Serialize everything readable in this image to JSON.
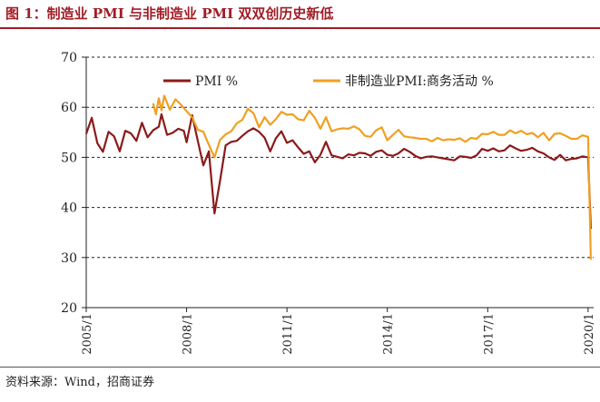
{
  "title": "图 1：制造业 PMI 与非制造业 PMI 双双创历史新低",
  "source": "资料来源：Wind，招商证券",
  "chart_data": {
    "type": "line",
    "ylim": [
      20,
      70
    ],
    "yticks": [
      20,
      30,
      40,
      50,
      60,
      70
    ],
    "xlim": [
      "2005/1",
      "2020/3"
    ],
    "xticks": [
      "2005/1",
      "2008/1",
      "2011/1",
      "2014/1",
      "2017/1",
      "2020/1"
    ],
    "grid": "horizontal dashed",
    "legend_position": "top",
    "series": [
      {
        "name": "PMI %",
        "color": "#8b1a1a",
        "points": [
          [
            "2005/1",
            54.7
          ],
          [
            "2005/3",
            57.9
          ],
          [
            "2005/5",
            52.8
          ],
          [
            "2005/7",
            51.1
          ],
          [
            "2005/9",
            55.1
          ],
          [
            "2005/11",
            54.2
          ],
          [
            "2006/1",
            51.2
          ],
          [
            "2006/3",
            55.3
          ],
          [
            "2006/5",
            54.8
          ],
          [
            "2006/7",
            53.3
          ],
          [
            "2006/9",
            56.9
          ],
          [
            "2006/11",
            54.0
          ],
          [
            "2007/1",
            55.4
          ],
          [
            "2007/3",
            56.1
          ],
          [
            "2007/4",
            58.6
          ],
          [
            "2007/6",
            54.5
          ],
          [
            "2007/8",
            54.9
          ],
          [
            "2007/10",
            55.7
          ],
          [
            "2007/12",
            55.3
          ],
          [
            "2008/1",
            53.0
          ],
          [
            "2008/3",
            58.4
          ],
          [
            "2008/5",
            53.3
          ],
          [
            "2008/7",
            48.4
          ],
          [
            "2008/9",
            51.2
          ],
          [
            "2008/11",
            38.8
          ],
          [
            "2009/1",
            45.3
          ],
          [
            "2009/3",
            52.4
          ],
          [
            "2009/5",
            53.1
          ],
          [
            "2009/7",
            53.3
          ],
          [
            "2009/9",
            54.3
          ],
          [
            "2009/11",
            55.2
          ],
          [
            "2010/1",
            55.8
          ],
          [
            "2010/3",
            55.1
          ],
          [
            "2010/5",
            53.9
          ],
          [
            "2010/7",
            51.2
          ],
          [
            "2010/9",
            53.8
          ],
          [
            "2010/11",
            55.2
          ],
          [
            "2011/1",
            52.9
          ],
          [
            "2011/3",
            53.4
          ],
          [
            "2011/5",
            52.0
          ],
          [
            "2011/7",
            50.7
          ],
          [
            "2011/9",
            51.2
          ],
          [
            "2011/11",
            49.0
          ],
          [
            "2012/1",
            50.5
          ],
          [
            "2012/3",
            53.1
          ],
          [
            "2012/5",
            50.4
          ],
          [
            "2012/7",
            50.1
          ],
          [
            "2012/9",
            49.8
          ],
          [
            "2012/11",
            50.6
          ],
          [
            "2013/1",
            50.4
          ],
          [
            "2013/3",
            50.9
          ],
          [
            "2013/5",
            50.8
          ],
          [
            "2013/7",
            50.3
          ],
          [
            "2013/9",
            51.1
          ],
          [
            "2013/11",
            51.4
          ],
          [
            "2014/1",
            50.5
          ],
          [
            "2014/3",
            50.3
          ],
          [
            "2014/5",
            50.8
          ],
          [
            "2014/7",
            51.7
          ],
          [
            "2014/9",
            51.1
          ],
          [
            "2014/11",
            50.3
          ],
          [
            "2015/1",
            49.8
          ],
          [
            "2015/3",
            50.1
          ],
          [
            "2015/5",
            50.2
          ],
          [
            "2015/7",
            50.0
          ],
          [
            "2015/9",
            49.8
          ],
          [
            "2015/11",
            49.6
          ],
          [
            "2016/1",
            49.4
          ],
          [
            "2016/3",
            50.2
          ],
          [
            "2016/5",
            50.1
          ],
          [
            "2016/7",
            49.9
          ],
          [
            "2016/9",
            50.4
          ],
          [
            "2016/11",
            51.7
          ],
          [
            "2017/1",
            51.3
          ],
          [
            "2017/3",
            51.8
          ],
          [
            "2017/5",
            51.2
          ],
          [
            "2017/7",
            51.4
          ],
          [
            "2017/9",
            52.4
          ],
          [
            "2017/11",
            51.8
          ],
          [
            "2018/1",
            51.3
          ],
          [
            "2018/3",
            51.5
          ],
          [
            "2018/5",
            51.9
          ],
          [
            "2018/7",
            51.2
          ],
          [
            "2018/9",
            50.8
          ],
          [
            "2018/11",
            50.0
          ],
          [
            "2019/1",
            49.5
          ],
          [
            "2019/3",
            50.5
          ],
          [
            "2019/5",
            49.4
          ],
          [
            "2019/7",
            49.7
          ],
          [
            "2019/9",
            49.8
          ],
          [
            "2019/11",
            50.2
          ],
          [
            "2020/1",
            50.0
          ],
          [
            "2020/2",
            35.7
          ]
        ]
      },
      {
        "name": "非制造业PMI:商务活动 %",
        "color": "#f0a020",
        "points": [
          [
            "2007/1",
            60.8
          ],
          [
            "2007/2",
            58.6
          ],
          [
            "2007/3",
            61.8
          ],
          [
            "2007/4",
            59.4
          ],
          [
            "2007/5",
            62.3
          ],
          [
            "2007/7",
            59.5
          ],
          [
            "2007/9",
            61.6
          ],
          [
            "2007/11",
            60.5
          ],
          [
            "2008/1",
            59.2
          ],
          [
            "2008/3",
            58.0
          ],
          [
            "2008/5",
            55.5
          ],
          [
            "2008/7",
            55.1
          ],
          [
            "2008/9",
            52.5
          ],
          [
            "2008/11",
            50.0
          ],
          [
            "2009/1",
            53.5
          ],
          [
            "2009/3",
            54.6
          ],
          [
            "2009/5",
            55.2
          ],
          [
            "2009/7",
            56.8
          ],
          [
            "2009/9",
            57.5
          ],
          [
            "2009/11",
            59.7
          ],
          [
            "2010/1",
            58.8
          ],
          [
            "2010/3",
            56.0
          ],
          [
            "2010/5",
            58.0
          ],
          [
            "2010/7",
            56.5
          ],
          [
            "2010/9",
            57.6
          ],
          [
            "2010/11",
            59.1
          ],
          [
            "2011/1",
            58.5
          ],
          [
            "2011/3",
            58.6
          ],
          [
            "2011/5",
            57.6
          ],
          [
            "2011/7",
            57.4
          ],
          [
            "2011/9",
            59.3
          ],
          [
            "2011/11",
            57.9
          ],
          [
            "2012/1",
            55.7
          ],
          [
            "2012/3",
            58.0
          ],
          [
            "2012/5",
            55.2
          ],
          [
            "2012/7",
            55.6
          ],
          [
            "2012/9",
            55.8
          ],
          [
            "2012/11",
            55.7
          ],
          [
            "2013/1",
            56.2
          ],
          [
            "2013/3",
            55.6
          ],
          [
            "2013/5",
            54.3
          ],
          [
            "2013/7",
            54.1
          ],
          [
            "2013/9",
            55.4
          ],
          [
            "2013/11",
            56.0
          ],
          [
            "2014/1",
            53.4
          ],
          [
            "2014/3",
            54.5
          ],
          [
            "2014/5",
            55.5
          ],
          [
            "2014/7",
            54.2
          ],
          [
            "2014/9",
            54.0
          ],
          [
            "2014/11",
            53.9
          ],
          [
            "2015/1",
            53.7
          ],
          [
            "2015/3",
            53.7
          ],
          [
            "2015/5",
            53.2
          ],
          [
            "2015/7",
            53.9
          ],
          [
            "2015/9",
            53.4
          ],
          [
            "2015/11",
            53.6
          ],
          [
            "2016/1",
            53.5
          ],
          [
            "2016/3",
            53.8
          ],
          [
            "2016/5",
            53.1
          ],
          [
            "2016/7",
            53.9
          ],
          [
            "2016/9",
            53.7
          ],
          [
            "2016/11",
            54.7
          ],
          [
            "2017/1",
            54.6
          ],
          [
            "2017/3",
            55.1
          ],
          [
            "2017/5",
            54.5
          ],
          [
            "2017/7",
            54.5
          ],
          [
            "2017/9",
            55.4
          ],
          [
            "2017/11",
            54.8
          ],
          [
            "2018/1",
            55.3
          ],
          [
            "2018/3",
            54.6
          ],
          [
            "2018/5",
            54.9
          ],
          [
            "2018/7",
            54.0
          ],
          [
            "2018/9",
            54.9
          ],
          [
            "2018/11",
            53.4
          ],
          [
            "2019/1",
            54.7
          ],
          [
            "2019/3",
            54.8
          ],
          [
            "2019/5",
            54.3
          ],
          [
            "2019/7",
            53.7
          ],
          [
            "2019/9",
            53.7
          ],
          [
            "2019/11",
            54.4
          ],
          [
            "2020/1",
            54.1
          ],
          [
            "2020/2",
            29.6
          ]
        ]
      }
    ]
  }
}
